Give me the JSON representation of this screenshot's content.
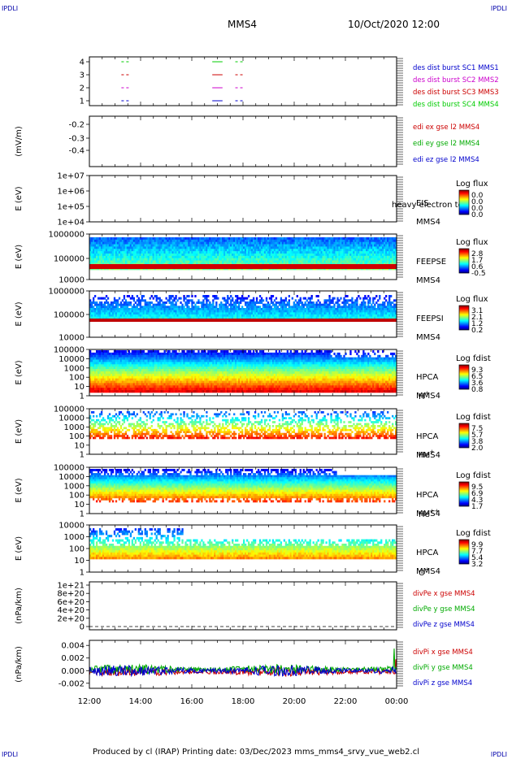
{
  "header": {
    "corner_label": "IPDLI",
    "spacecraft": "MMS4",
    "datetime": "10/Oct/2020 12:00"
  },
  "footer": {
    "text": "Produced by cl (IRAP)   Printing date: 03/Dec/2023   mms_mms4_srvy_vue_web2.cl"
  },
  "chart_data": [
    {
      "type": "line",
      "id": "burst",
      "ylabel": "",
      "yticks": [
        "4",
        "3",
        "2",
        "1"
      ],
      "ylim": [
        0.5,
        4.5
      ],
      "series": [
        {
          "name": "des dist burst SC1 MMS1",
          "color": "#0000cc",
          "level": 1
        },
        {
          "name": "des dist burst SC2 MMS2",
          "color": "#cc00cc",
          "level": 2
        },
        {
          "name": "des dist burst SC3 MMS3",
          "color": "#cc0000",
          "level": 3
        },
        {
          "name": "des dist burst SC4 MMS4",
          "color": "#00cc00",
          "level": 4
        }
      ],
      "burst_intervals_hours": [
        [
          13.25,
          13.55
        ],
        [
          16.8,
          17.2
        ],
        [
          17.7,
          18.0
        ]
      ]
    },
    {
      "type": "line",
      "id": "edi",
      "ylabel": "(mV/m)",
      "yticks": [
        "-0.2",
        "-0.3",
        "-0.4"
      ],
      "series": [
        {
          "name": "edi ex gse l2 MMS4",
          "color": "#cc0000"
        },
        {
          "name": "edi ey gse l2 MMS4",
          "color": "#00aa00"
        },
        {
          "name": "edi ez gse l2 MMS4",
          "color": "#0000cc"
        }
      ]
    },
    {
      "type": "heatmap",
      "id": "eis",
      "ylabel": "E (eV)",
      "yticks": [
        "1e+07",
        "1e+06",
        "1e+05",
        "1e+04"
      ],
      "labels": [
        "EIS",
        "MMS4"
      ],
      "extra_label": "heavy electron to",
      "colorbar_title": "Log flux",
      "colorbar_ticks": [
        "0.0",
        "0.0",
        "0.0",
        "0.0"
      ]
    },
    {
      "type": "heatmap",
      "id": "feepse",
      "ylabel": "E (eV)",
      "yticks": [
        "1000000",
        "100000",
        "10000"
      ],
      "labels": [
        "FEEPSE",
        "MMS4"
      ],
      "colorbar_title": "Log flux",
      "colorbar_ticks": [
        "2.8",
        "1.7",
        "0.6",
        "-0.5"
      ]
    },
    {
      "type": "heatmap",
      "id": "feepsi",
      "ylabel": "E (eV)",
      "yticks": [
        "1000000",
        "100000",
        "10000"
      ],
      "labels": [
        "FEEPSI",
        "MMS4"
      ],
      "colorbar_title": "Log flux",
      "colorbar_ticks": [
        "3.1",
        "2.1",
        "1.2",
        "0.2"
      ]
    },
    {
      "type": "heatmap",
      "id": "hpca_h",
      "ylabel": "E (eV)",
      "yticks": [
        "100000",
        "10000",
        "1000",
        "100",
        "10",
        "1"
      ],
      "labels": [
        "HPCA",
        "MMS4"
      ],
      "species": "H",
      "species_sup": "+",
      "colorbar_title": "Log fdist",
      "colorbar_ticks": [
        "9.3",
        "6.5",
        "3.6",
        "0.8"
      ]
    },
    {
      "type": "heatmap",
      "id": "hpca_he1",
      "ylabel": "E (eV)",
      "yticks": [
        "100000",
        "10000",
        "1000",
        "100",
        "10",
        "1"
      ],
      "labels": [
        "HPCA",
        "MMS4"
      ],
      "species": "He",
      "species_sup": "+",
      "colorbar_title": "Log fdist",
      "colorbar_ticks": [
        "7.5",
        "5.7",
        "3.8",
        "2.0"
      ]
    },
    {
      "type": "heatmap",
      "id": "hpca_he2",
      "ylabel": "E (eV)",
      "yticks": [
        "100000",
        "10000",
        "1000",
        "100",
        "10",
        "1"
      ],
      "labels": [
        "HPCA",
        "MMS4"
      ],
      "species": "He",
      "species_sup": "++",
      "colorbar_title": "Log fdist",
      "colorbar_ticks": [
        "9.5",
        "6.9",
        "4.3",
        "1.7"
      ]
    },
    {
      "type": "heatmap",
      "id": "hpca_o",
      "ylabel": "E (eV)",
      "yticks": [
        "10000",
        "1000",
        "100",
        "10",
        "1"
      ],
      "labels": [
        "HPCA",
        "MMS4"
      ],
      "species": "O",
      "species_sup": "+",
      "colorbar_title": "Log fdist",
      "colorbar_ticks": [
        "9.9",
        "7.7",
        "5.4",
        "3.2"
      ]
    },
    {
      "type": "line",
      "id": "divpe",
      "ylabel": "(nPa/km)",
      "yticks": [
        "1e+21",
        "8e+20",
        "6e+20",
        "4e+20",
        "2e+20",
        "0"
      ],
      "series": [
        {
          "name": "divPe x gse MMS4",
          "color": "#cc0000"
        },
        {
          "name": "divPe y gse MMS4",
          "color": "#00aa00"
        },
        {
          "name": "divPe z gse MMS4",
          "color": "#0000cc"
        }
      ]
    },
    {
      "type": "line",
      "id": "divpi",
      "ylabel": "(nPa/km)",
      "yticks": [
        "0.004",
        "0.002",
        "0.000",
        "-0.002"
      ],
      "ylim": [
        -0.0028,
        0.0048
      ],
      "series": [
        {
          "name": "divPi x gse MMS4",
          "color": "#cc0000"
        },
        {
          "name": "divPi y gse MMS4",
          "color": "#00aa00"
        },
        {
          "name": "divPi z gse MMS4",
          "color": "#0000cc"
        }
      ]
    }
  ],
  "x_axis": {
    "ticks": [
      "12:00",
      "14:00",
      "16:00",
      "18:00",
      "20:00",
      "22:00",
      "00:00"
    ],
    "xlim_hours": [
      12,
      24
    ]
  }
}
